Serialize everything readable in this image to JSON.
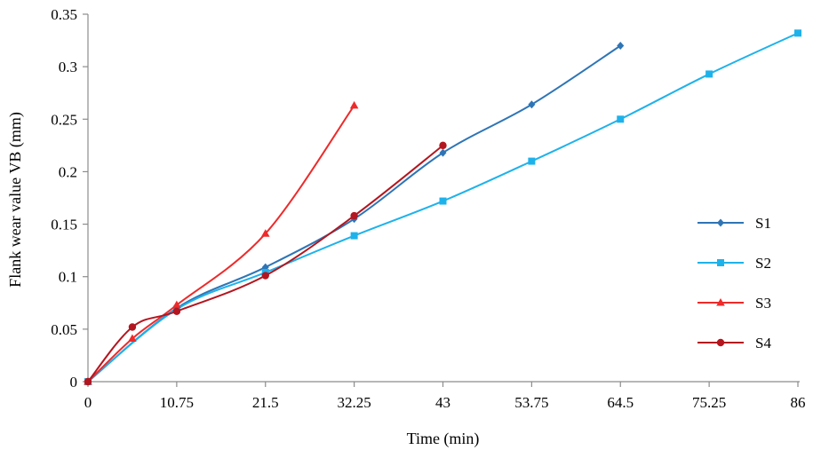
{
  "chart_data": {
    "type": "line",
    "xlabel": "Time (min)",
    "ylabel": "Flank wear value VB (mm)",
    "x_ticks": [
      "0",
      "10.75",
      "21.5",
      "32.25",
      "43",
      "53.75",
      "64.5",
      "75.25",
      "86"
    ],
    "y_ticks": [
      "0",
      "0.05",
      "0.1",
      "0.15",
      "0.2",
      "0.25",
      "0.3",
      "0.35"
    ],
    "xlim": [
      0,
      86
    ],
    "ylim": [
      0,
      0.35
    ],
    "grid": false,
    "legend_position": "right",
    "series": [
      {
        "name": "S1",
        "color": "#2E75B6",
        "marker": "diamond",
        "x": [
          0,
          10.75,
          21.5,
          32.25,
          43,
          53.75,
          64.5
        ],
        "y": [
          0,
          0.07,
          0.109,
          0.155,
          0.218,
          0.264,
          0.32
        ]
      },
      {
        "name": "S2",
        "color": "#1EB2EB",
        "marker": "square",
        "x": [
          0,
          10.75,
          21.5,
          32.25,
          43,
          53.75,
          64.5,
          75.25,
          86
        ],
        "y": [
          0,
          0.069,
          0.104,
          0.139,
          0.172,
          0.21,
          0.25,
          0.293,
          0.332
        ]
      },
      {
        "name": "S3",
        "color": "#EE2A2A",
        "marker": "triangle",
        "x": [
          0,
          5.375,
          10.75,
          21.5,
          32.25
        ],
        "y": [
          0,
          0.041,
          0.073,
          0.141,
          0.263
        ]
      },
      {
        "name": "S4",
        "color": "#B3161F",
        "marker": "circle",
        "x": [
          0,
          5.375,
          10.75,
          21.5,
          32.25,
          43
        ],
        "y": [
          0,
          0.052,
          0.067,
          0.101,
          0.158,
          0.225
        ]
      }
    ]
  }
}
